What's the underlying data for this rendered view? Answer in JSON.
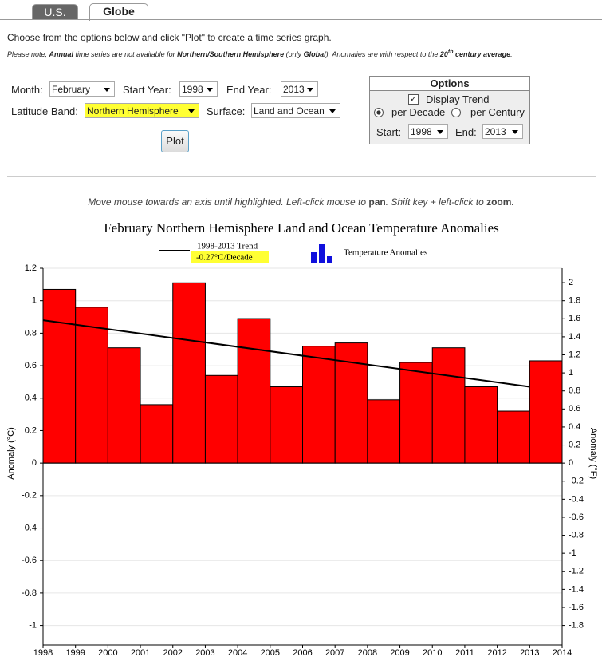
{
  "tabs": [
    "U.S.",
    "Globe"
  ],
  "intro": "Choose from the options below and click \"Plot\" to create a time series graph.",
  "note": [
    "Please note, ",
    "Annual",
    " time series are not available for ",
    "Northern/Southern Hemisphere",
    " (only ",
    "Global",
    "). Anomalies are with respect to the ",
    "20",
    "th",
    " century average",
    "."
  ],
  "form": {
    "month_label": "Month:",
    "month": "February",
    "start_label": "Start Year:",
    "start": "1998",
    "end_label": "End Year:",
    "end": "2013",
    "band_label": "Latitude Band:",
    "band": "Northern Hemisphere",
    "surface_label": "Surface:",
    "surface": "Land and Ocean",
    "button": "Plot"
  },
  "options": {
    "title": "Options",
    "trend": "Display Trend",
    "per_decade": "per Decade",
    "per_century": "per Century",
    "start_label": "Start:",
    "start": "1998",
    "end_label": "End:",
    "end": "2013"
  },
  "hint": [
    "Move mouse towards an axis until highlighted. Left-click mouse to ",
    "pan",
    ". Shift key + left-click to ",
    "zoom",
    "."
  ],
  "chart_data": {
    "type": "bar",
    "title": "February Northern Hemisphere Land and Ocean Temperature Anomalies",
    "y_label": "Anomaly (°C)",
    "y2_label": "Anomaly (°F)",
    "series": [
      {
        "name": "Temperature Anomalies",
        "type": "bar",
        "color": "#ff0000",
        "x": [
          1998,
          1999,
          2000,
          2001,
          2002,
          2003,
          2004,
          2005,
          2006,
          2007,
          2008,
          2009,
          2010,
          2011,
          2012,
          2013
        ],
        "values": [
          1.07,
          0.96,
          0.71,
          0.36,
          1.11,
          0.54,
          0.89,
          0.47,
          0.72,
          0.74,
          0.39,
          0.62,
          0.71,
          0.47,
          0.32,
          0.63
        ]
      },
      {
        "name": "1998-2013 Trend",
        "type": "line",
        "color": "#000000",
        "rate_label": "-0.27°C/Decade",
        "x": [
          1998,
          2013
        ],
        "values": [
          0.88,
          0.47
        ]
      }
    ],
    "xlim": [
      1998,
      2014
    ],
    "xticks": [
      1998,
      1999,
      2000,
      2001,
      2002,
      2003,
      2004,
      2005,
      2006,
      2007,
      2008,
      2009,
      2010,
      2011,
      2012,
      2013,
      2014
    ],
    "ylim": [
      -1.12,
      1.2
    ],
    "yticks": [
      -1,
      -0.8,
      -0.6,
      -0.4,
      -0.2,
      0,
      0.2,
      0.4,
      0.6,
      0.8,
      1,
      1.2
    ],
    "y2lim": [
      -2.016,
      2.16
    ],
    "y2ticks": [
      -1.8,
      -1.6,
      -1.4,
      -1.2,
      -1,
      -0.8,
      -0.6,
      -0.4,
      -0.2,
      0,
      0.2,
      0.4,
      0.6,
      0.8,
      1,
      1.2,
      1.4,
      1.6,
      1.8,
      2
    ],
    "grid": true
  }
}
